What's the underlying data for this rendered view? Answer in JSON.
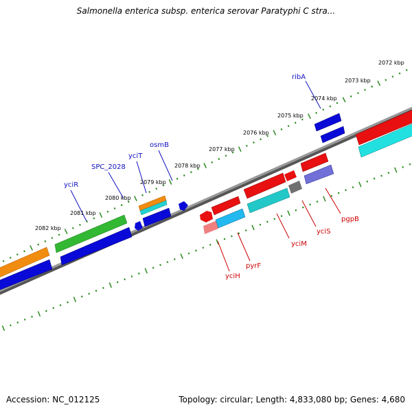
{
  "title": "Salmonella enterica subsp. enterica serovar Paratyphi C stra...",
  "footer": {
    "accession": "Accession: NC_012125",
    "summary": "Topology: circular; Length: 4,833,080 bp; Genes: 4,680"
  },
  "colors": {
    "scale_ticks": "#2a8a1e",
    "backbone": "#8a8a8a",
    "label_top": "#1010c0",
    "label_bottom": "#cc0000"
  },
  "scale": [
    {
      "label": "2072 kbp"
    },
    {
      "label": "2073 kbp"
    },
    {
      "label": "2074 kbp"
    },
    {
      "label": "2075 kbp"
    },
    {
      "label": "2076 kbp"
    },
    {
      "label": "2077 kbp"
    },
    {
      "label": "2078 kbp"
    },
    {
      "label": "2079 kbp"
    },
    {
      "label": "2080 kbp"
    },
    {
      "label": "2081 kbp"
    },
    {
      "label": "2082 kbp"
    }
  ],
  "gene_labels_top": [
    {
      "name": "ribA"
    },
    {
      "name": "osmB"
    },
    {
      "name": "yciT"
    },
    {
      "name": "SPC_2028"
    },
    {
      "name": "yciR"
    }
  ],
  "gene_labels_bottom": [
    {
      "name": "pgpB"
    },
    {
      "name": "yciS"
    },
    {
      "name": "yciM"
    },
    {
      "name": "pyrF"
    },
    {
      "name": "yciH"
    }
  ]
}
